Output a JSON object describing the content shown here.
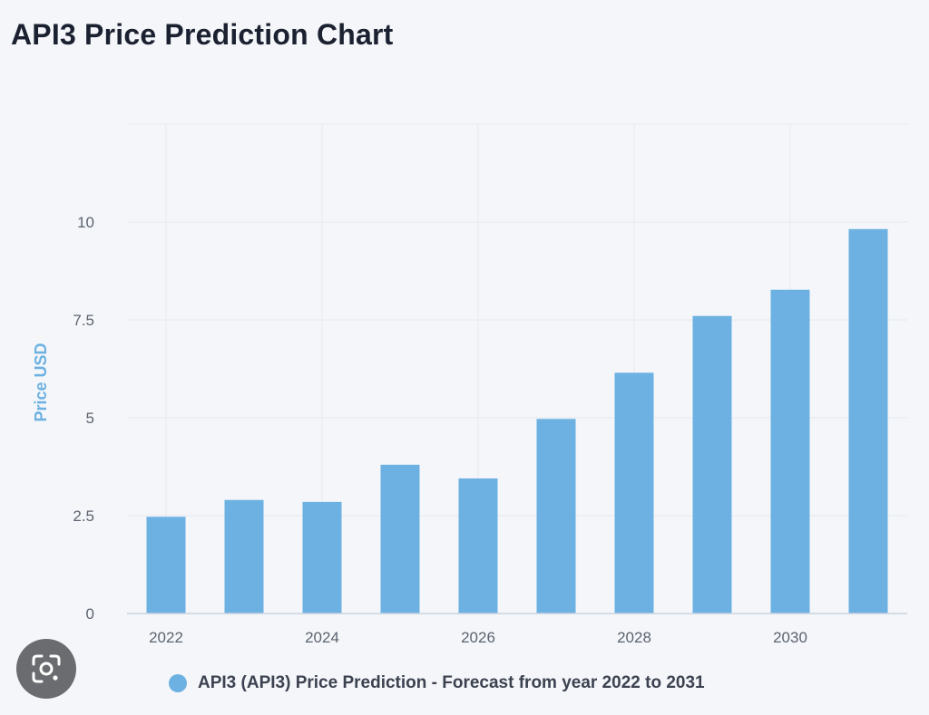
{
  "header": {
    "title": "API3 Price Prediction Chart"
  },
  "chart_data": {
    "type": "bar",
    "categories": [
      "2022",
      "2023",
      "2024",
      "2025",
      "2026",
      "2027",
      "2028",
      "2029",
      "2030",
      "2031"
    ],
    "series": [
      {
        "name": "API3 (API3) Price Prediction - Forecast from year 2022 to 2031",
        "values": [
          2.47,
          2.9,
          2.85,
          3.8,
          3.45,
          4.97,
          6.15,
          7.6,
          8.27,
          9.82
        ]
      }
    ],
    "x_tick_labels": [
      "2022",
      "2024",
      "2026",
      "2028",
      "2030"
    ],
    "y_tick_labels": [
      "0",
      "2.5",
      "5",
      "7.5",
      "10"
    ],
    "ylabel": "Price USD",
    "xlabel": "",
    "ylim": [
      0,
      12.5
    ],
    "grid": true,
    "legend_position": "bottom",
    "bar_color": "#6cb1e2",
    "axis_label_color": "#6cb1e2"
  },
  "legend": {
    "label": "API3 (API3) Price Prediction - Forecast from year 2022 to 2031",
    "color": "#6cb1e2"
  },
  "lens_button": {
    "icon": "camera-search-icon"
  }
}
